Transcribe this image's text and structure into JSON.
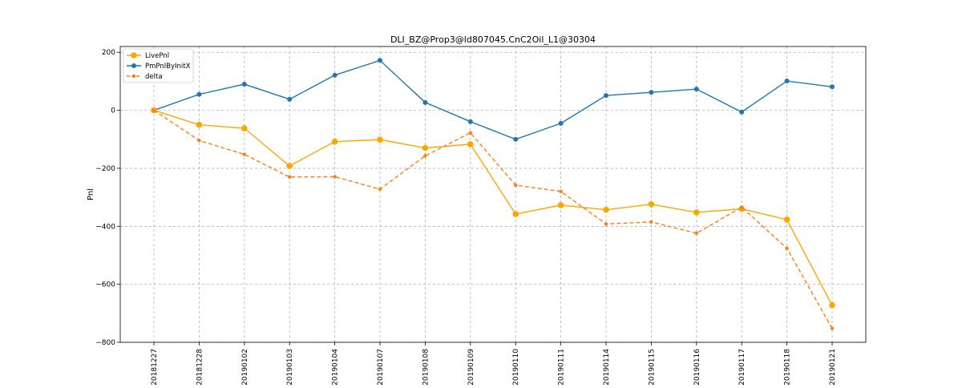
{
  "chart_data": {
    "type": "line",
    "title": "DLI_BZ@Prop3@ld807045.CnC2Oil_L1@30304",
    "xlabel": "",
    "ylabel": "Pnl",
    "categories": [
      "20181227",
      "20181228",
      "20190102",
      "20190103",
      "20190104",
      "20190107",
      "20190108",
      "20190109",
      "20190110",
      "20190111",
      "20190114",
      "20190115",
      "20190116",
      "20190117",
      "20190118",
      "20190121"
    ],
    "ylim": [
      -800,
      220
    ],
    "yticks": [
      200,
      0,
      -200,
      -400,
      -600,
      -800
    ],
    "ytick_labels": [
      "200",
      "0",
      "−200",
      "−400",
      "−600",
      "−800"
    ],
    "grid": true,
    "legend_position": "upper-left",
    "series": [
      {
        "name": "LivePnl",
        "color": "#ffa500",
        "style": "solid",
        "marker": "circle-large",
        "values": [
          0,
          -50,
          -62,
          -192,
          -108,
          -101,
          -130,
          -117,
          -358,
          -327,
          -343,
          -324,
          -352,
          -340,
          -377,
          -672
        ]
      },
      {
        "name": "PmPnlByInitX",
        "color": "#1f77b4",
        "style": "solid",
        "marker": "circle",
        "values": [
          0,
          55,
          90,
          38,
          121,
          172,
          27,
          -39,
          -100,
          -45,
          51,
          62,
          73,
          -6,
          101,
          81
        ]
      },
      {
        "name": "delta",
        "color": "#ff7f0e",
        "style": "dashed",
        "marker": "circle-small",
        "values": [
          0,
          -104,
          -152,
          -230,
          -229,
          -272,
          -157,
          -78,
          -258,
          -280,
          -392,
          -385,
          -424,
          -334,
          -476,
          -752
        ]
      }
    ]
  }
}
